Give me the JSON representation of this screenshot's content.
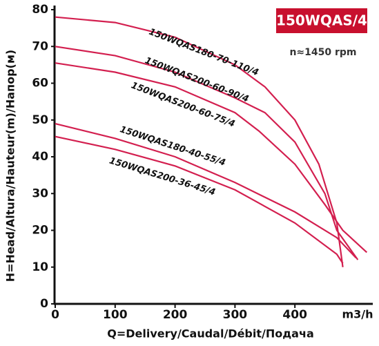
{
  "chart_data": {
    "type": "line",
    "title": "150WQAS/4",
    "subtitle": "n≈1450 rpm",
    "x_label": "Q=Delivery/Caudal/Débit/Подача",
    "x_unit": "m3/h",
    "y_label": "H=Head/Altura/Hauteur(m)/Напор(м)",
    "xlim": [
      0,
      530
    ],
    "ylim": [
      0,
      80
    ],
    "xticks": [
      0,
      100,
      200,
      300,
      400
    ],
    "yticks": [
      0,
      10,
      20,
      30,
      40,
      50,
      60,
      70,
      80
    ],
    "grid": false,
    "series": [
      {
        "name": "150WQAS180-70-110/4",
        "color": "#d31f4f",
        "x": [
          0,
          100,
          200,
          300,
          350,
          400,
          440,
          470,
          480
        ],
        "values": [
          78,
          76.5,
          72.5,
          65,
          59,
          50,
          38,
          22,
          10
        ]
      },
      {
        "name": "150WQAS200-60-90/4",
        "color": "#d31f4f",
        "x": [
          0,
          100,
          200,
          300,
          350,
          400,
          450,
          470,
          505
        ],
        "values": [
          70,
          67.5,
          63,
          56,
          52,
          44,
          30,
          20,
          12
        ]
      },
      {
        "name": "150WQAS200-60-75/4",
        "color": "#d31f4f",
        "x": [
          0,
          100,
          200,
          300,
          340,
          400,
          450,
          480,
          520
        ],
        "values": [
          65.5,
          63,
          59,
          52,
          47,
          38,
          27,
          20,
          14
        ]
      },
      {
        "name": "150WQAS180-40-55/4",
        "color": "#d31f4f",
        "x": [
          0,
          100,
          200,
          300,
          400,
          470,
          502
        ],
        "values": [
          49,
          45,
          40,
          33,
          25,
          18,
          12.5
        ]
      },
      {
        "name": "150WQAS200-36-45/4",
        "color": "#d31f4f",
        "x": [
          0,
          100,
          200,
          300,
          400,
          470,
          480
        ],
        "values": [
          45.5,
          42,
          37.5,
          31,
          22,
          13.5,
          11
        ]
      }
    ]
  }
}
